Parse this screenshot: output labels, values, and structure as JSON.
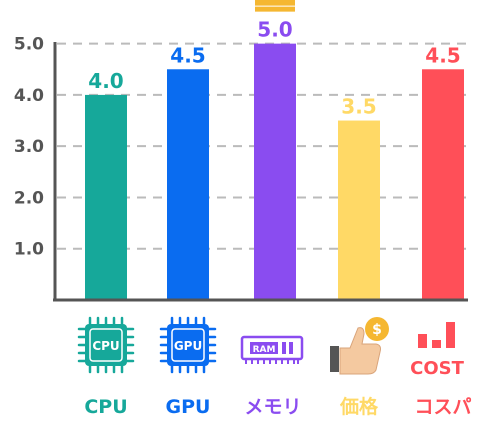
{
  "chart_data": {
    "type": "bar",
    "categories": [
      "CPU",
      "GPU",
      "メモリ",
      "価格",
      "コスパ"
    ],
    "values": [
      4.0,
      4.5,
      5.0,
      3.5,
      4.5
    ],
    "value_labels": [
      "4.0",
      "4.5",
      "5.0",
      "3.5",
      "4.5"
    ],
    "ylim": [
      0,
      5.5
    ],
    "yticks": [
      1.0,
      2.0,
      3.0,
      4.0,
      5.0
    ],
    "ytick_labels": [
      "1.0",
      "2.0",
      "3.0",
      "4.0",
      "5.0"
    ],
    "grid": true,
    "colors": [
      "#16a89a",
      "#0a6cf0",
      "#8a4cf0",
      "#ffd966",
      "#ff4f58"
    ],
    "value_label_colors": [
      "#16a89a",
      "#0a6cf0",
      "#8a4cf0",
      "#ffd966",
      "#ff4f58"
    ],
    "highlight": {
      "category": "メモリ",
      "icon": "crown-icon",
      "color": "#f5b731"
    }
  },
  "icons": [
    {
      "name": "cpu-chip-icon",
      "text": "CPU",
      "color": "#16a89a"
    },
    {
      "name": "gpu-chip-icon",
      "text": "GPU",
      "color": "#0a6cf0"
    },
    {
      "name": "ram-module-icon",
      "text": "RAM",
      "color": "#8a4cf0"
    },
    {
      "name": "thumbs-up-coin-icon",
      "text": "$",
      "color": "#f5b731"
    },
    {
      "name": "cost-bars-icon",
      "text": "COST",
      "color": "#ff4f58"
    }
  ]
}
